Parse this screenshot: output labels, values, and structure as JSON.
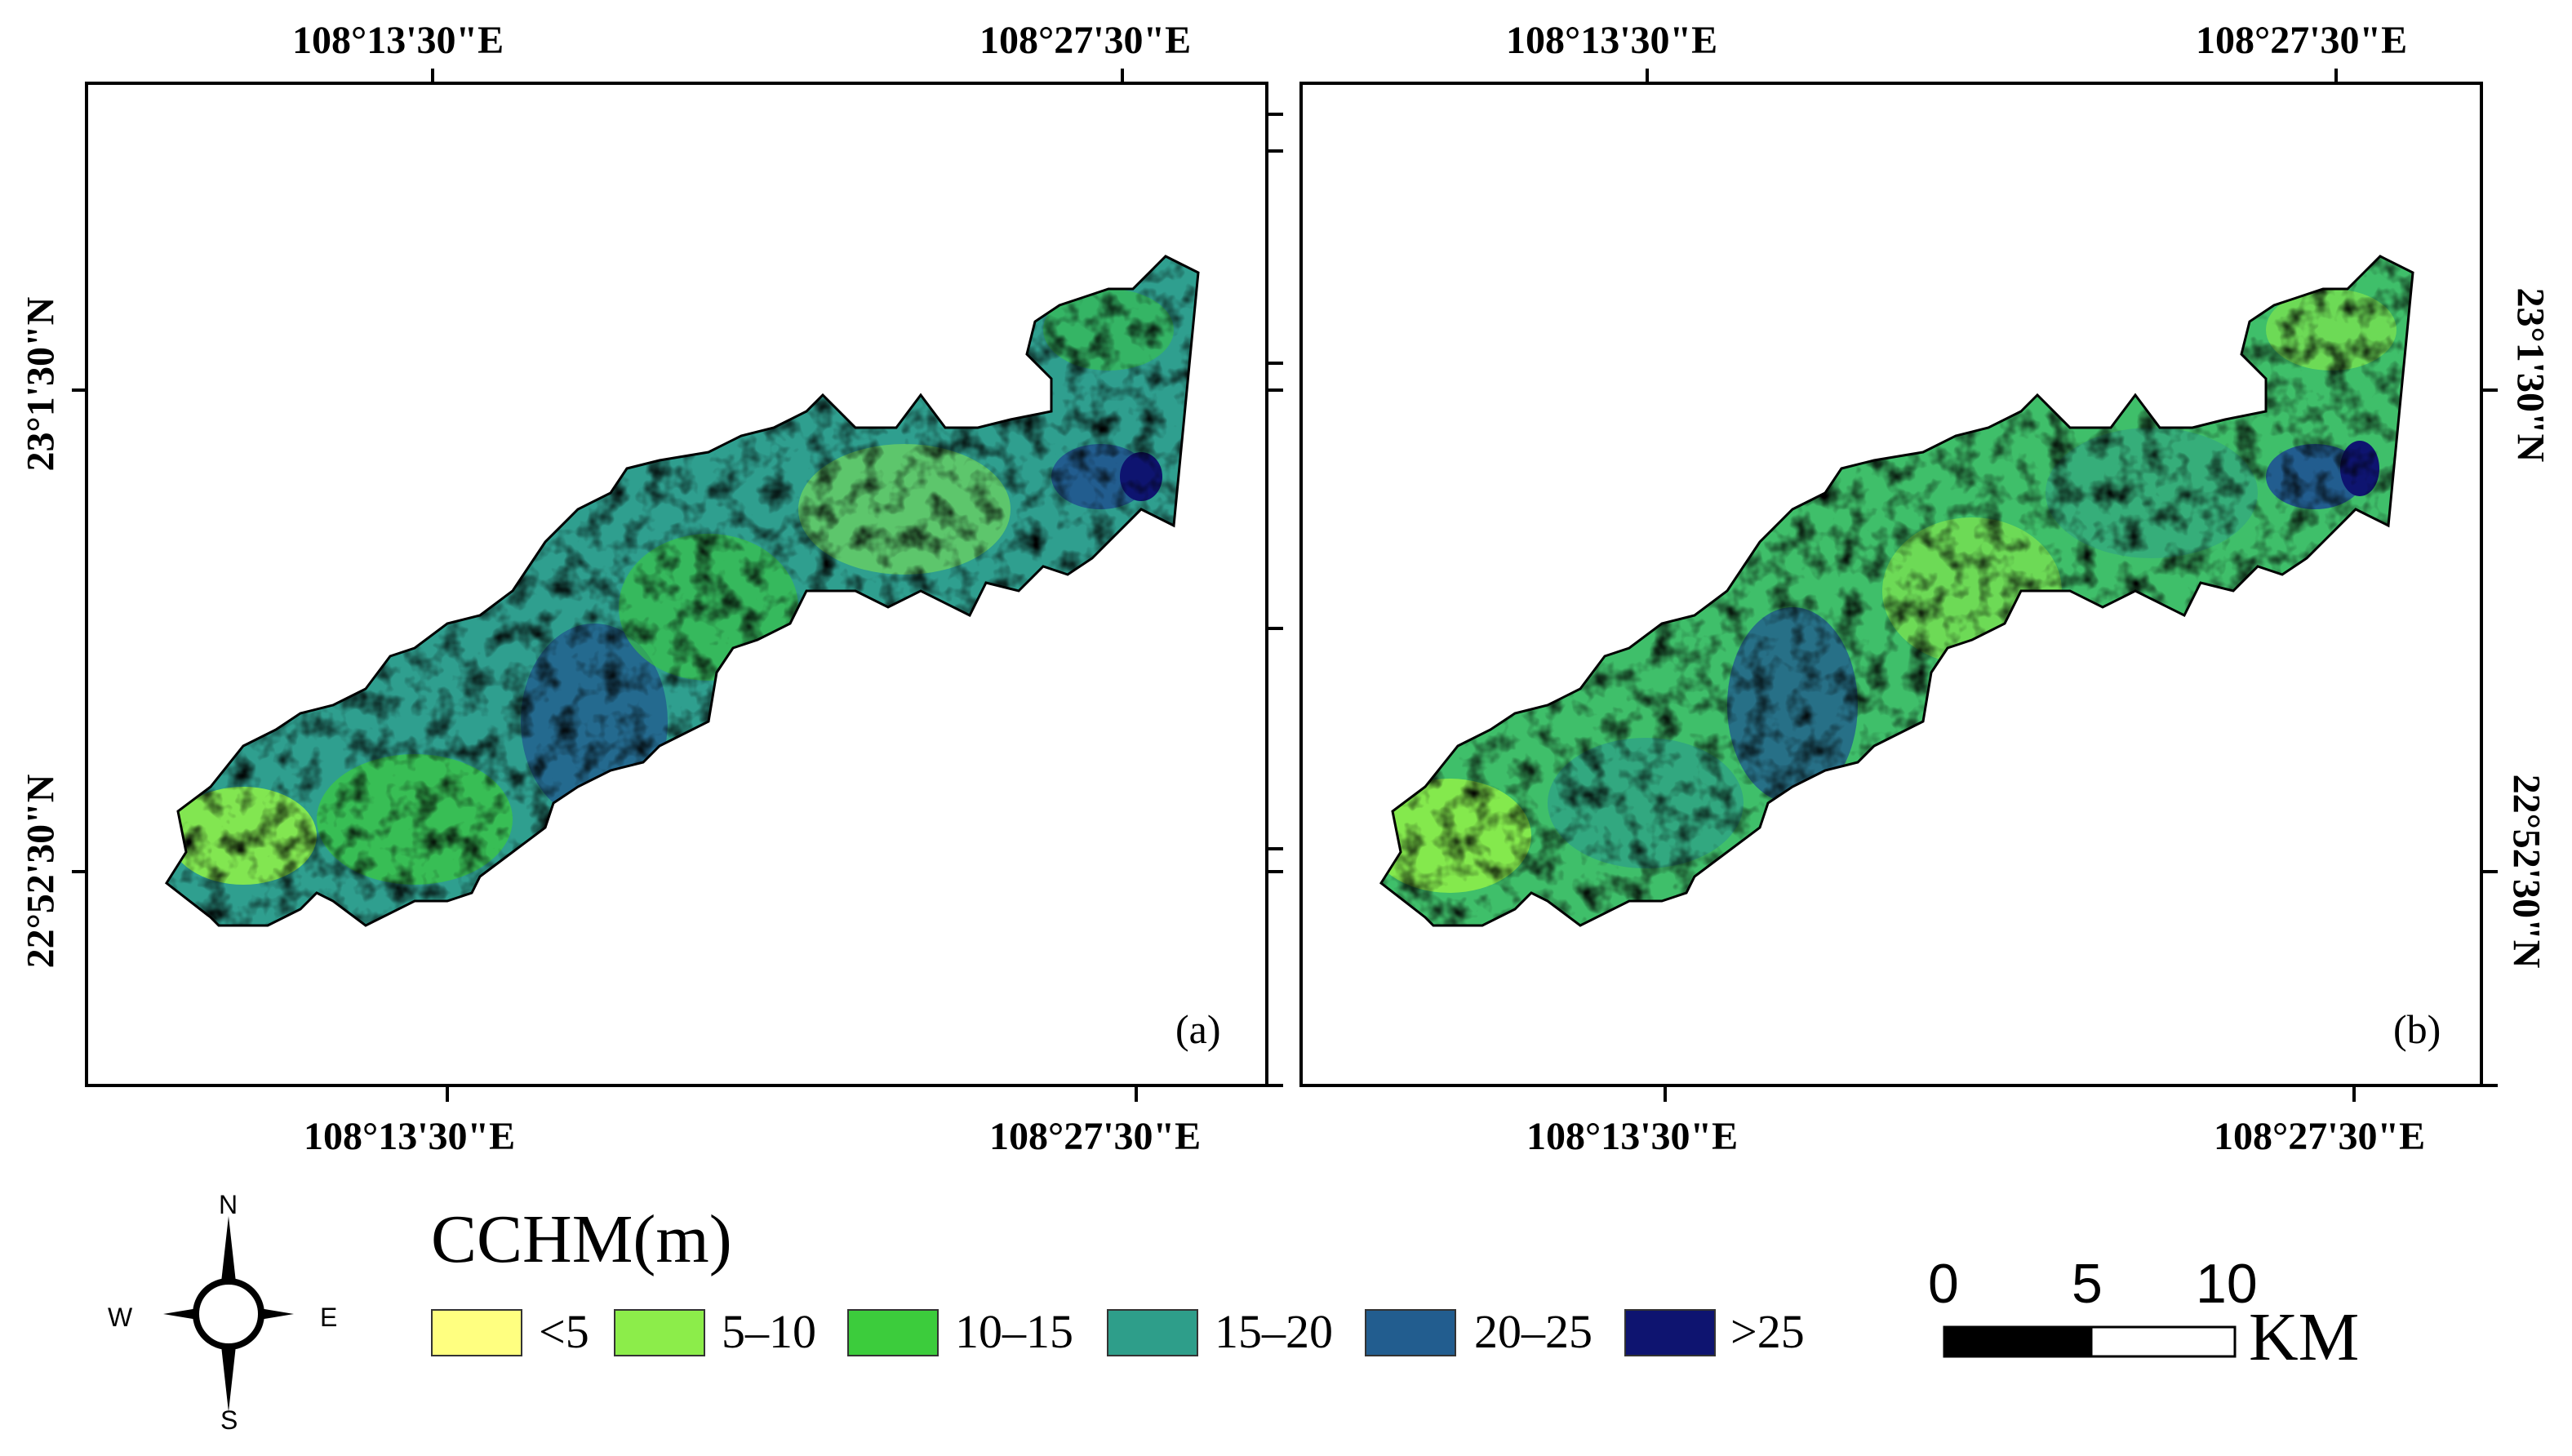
{
  "panels": [
    {
      "id": "a",
      "tag": "(a)",
      "top_labels": [
        "108°13'30\"E",
        "108°27'30\"E"
      ],
      "bottom_labels": [
        "108°13'30\"E",
        "108°27'30\"E"
      ],
      "left_labels": [
        "23°1'30\"N",
        "22°52'30\"N"
      ]
    },
    {
      "id": "b",
      "tag": "(b)",
      "top_labels": [
        "108°13'30\"E",
        "108°27'30\"E"
      ],
      "bottom_labels": [
        "108°13'30\"E",
        "108°27'30\"E"
      ],
      "right_labels": [
        "23°1'30\"N",
        "22°52'30\"N"
      ]
    }
  ],
  "legend": {
    "title": "CCHM(m)",
    "classes": [
      {
        "label": "<5",
        "color": "#ffff80"
      },
      {
        "label": "5–10",
        "color": "#8ced4a"
      },
      {
        "label": "10–15",
        "color": "#3ccc3c"
      },
      {
        "label": "15–20",
        "color": "#2e9e8a"
      },
      {
        "label": "20–25",
        "color": "#225d8f"
      },
      {
        "label": ">25",
        "color": "#0e1470"
      }
    ]
  },
  "scale_bar": {
    "ticks": [
      "0",
      "5",
      "10"
    ],
    "unit": "KM"
  },
  "compass": {
    "n": "N",
    "s": "S",
    "e": "E",
    "w": "W"
  }
}
